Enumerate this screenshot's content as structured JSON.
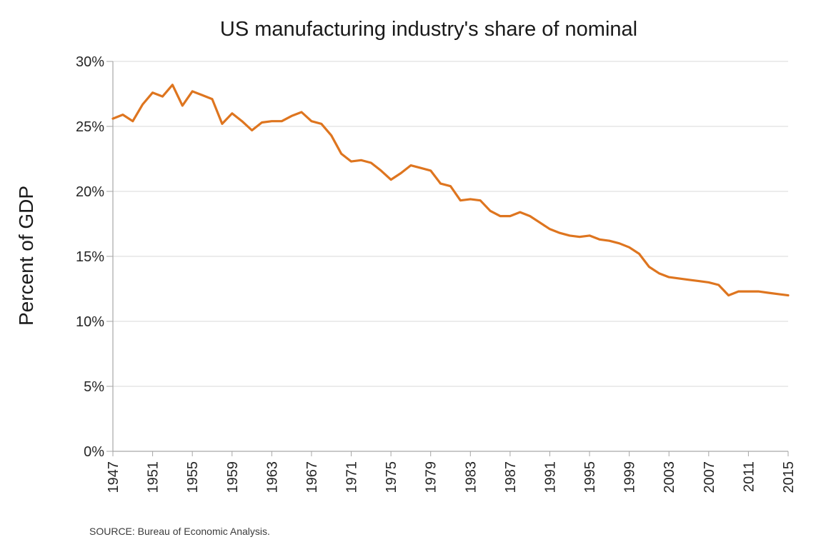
{
  "page": {
    "background": "#ffffff"
  },
  "chart": {
    "title": "US manufacturing industry's share of nominal",
    "y_axis_title": "Percent of GDP",
    "source_note": "SOURCE: Bureau of Economic Analysis.",
    "colors": {
      "line": "#DE751F",
      "gridline": "#D9D9D9",
      "axis": "#A6A6A6",
      "tick_text": "#262626",
      "title_text": "#1a1a1a",
      "source_text": "#3b3b3b"
    }
  },
  "chart_data": {
    "type": "line",
    "title": "US manufacturing industry's share of nominal",
    "xlabel": "",
    "ylabel": "Percent of GDP",
    "series_name": "Manufacturing share of nominal GDP",
    "legend": "none",
    "grid": "horizontal",
    "xlim": [
      1947,
      2015
    ],
    "ylim": [
      0,
      30
    ],
    "ytick_values": [
      0,
      5,
      10,
      15,
      20,
      25,
      30
    ],
    "ytick_labels": [
      "0%",
      "5%",
      "10%",
      "15%",
      "20%",
      "25%",
      "30%"
    ],
    "xtick_labels": [
      "1947",
      "1951",
      "1955",
      "1959",
      "1963",
      "1967",
      "1971",
      "1975",
      "1979",
      "1983",
      "1987",
      "1991",
      "1995",
      "1999",
      "2003",
      "2007",
      "2011",
      "2015"
    ],
    "x": [
      1947,
      1948,
      1949,
      1950,
      1951,
      1952,
      1953,
      1954,
      1955,
      1956,
      1957,
      1958,
      1959,
      1960,
      1961,
      1962,
      1963,
      1964,
      1965,
      1966,
      1967,
      1968,
      1969,
      1970,
      1971,
      1972,
      1973,
      1974,
      1975,
      1976,
      1977,
      1978,
      1979,
      1980,
      1981,
      1982,
      1983,
      1984,
      1985,
      1986,
      1987,
      1988,
      1989,
      1990,
      1991,
      1992,
      1993,
      1994,
      1995,
      1996,
      1997,
      1998,
      1999,
      2000,
      2001,
      2002,
      2003,
      2004,
      2005,
      2006,
      2007,
      2008,
      2009,
      2010,
      2011,
      2012,
      2013,
      2014,
      2015
    ],
    "values": [
      25.6,
      25.9,
      25.4,
      26.7,
      27.6,
      27.3,
      28.2,
      26.6,
      27.7,
      27.4,
      27.1,
      25.2,
      26.0,
      25.4,
      24.7,
      25.3,
      25.4,
      25.4,
      25.8,
      26.1,
      25.4,
      25.2,
      24.3,
      22.9,
      22.3,
      22.4,
      22.2,
      21.6,
      20.9,
      21.4,
      22.0,
      21.8,
      21.6,
      20.6,
      20.4,
      19.3,
      19.4,
      19.3,
      18.5,
      18.1,
      18.1,
      18.4,
      18.1,
      17.6,
      17.1,
      16.8,
      16.6,
      16.5,
      16.6,
      16.3,
      16.2,
      16.0,
      15.7,
      15.2,
      14.2,
      13.7,
      13.4,
      13.3,
      13.2,
      13.1,
      13.0,
      12.8,
      12.0,
      12.3,
      12.3,
      12.3,
      12.2,
      12.1,
      12.0
    ],
    "source": "SOURCE: Bureau of Economic Analysis."
  }
}
